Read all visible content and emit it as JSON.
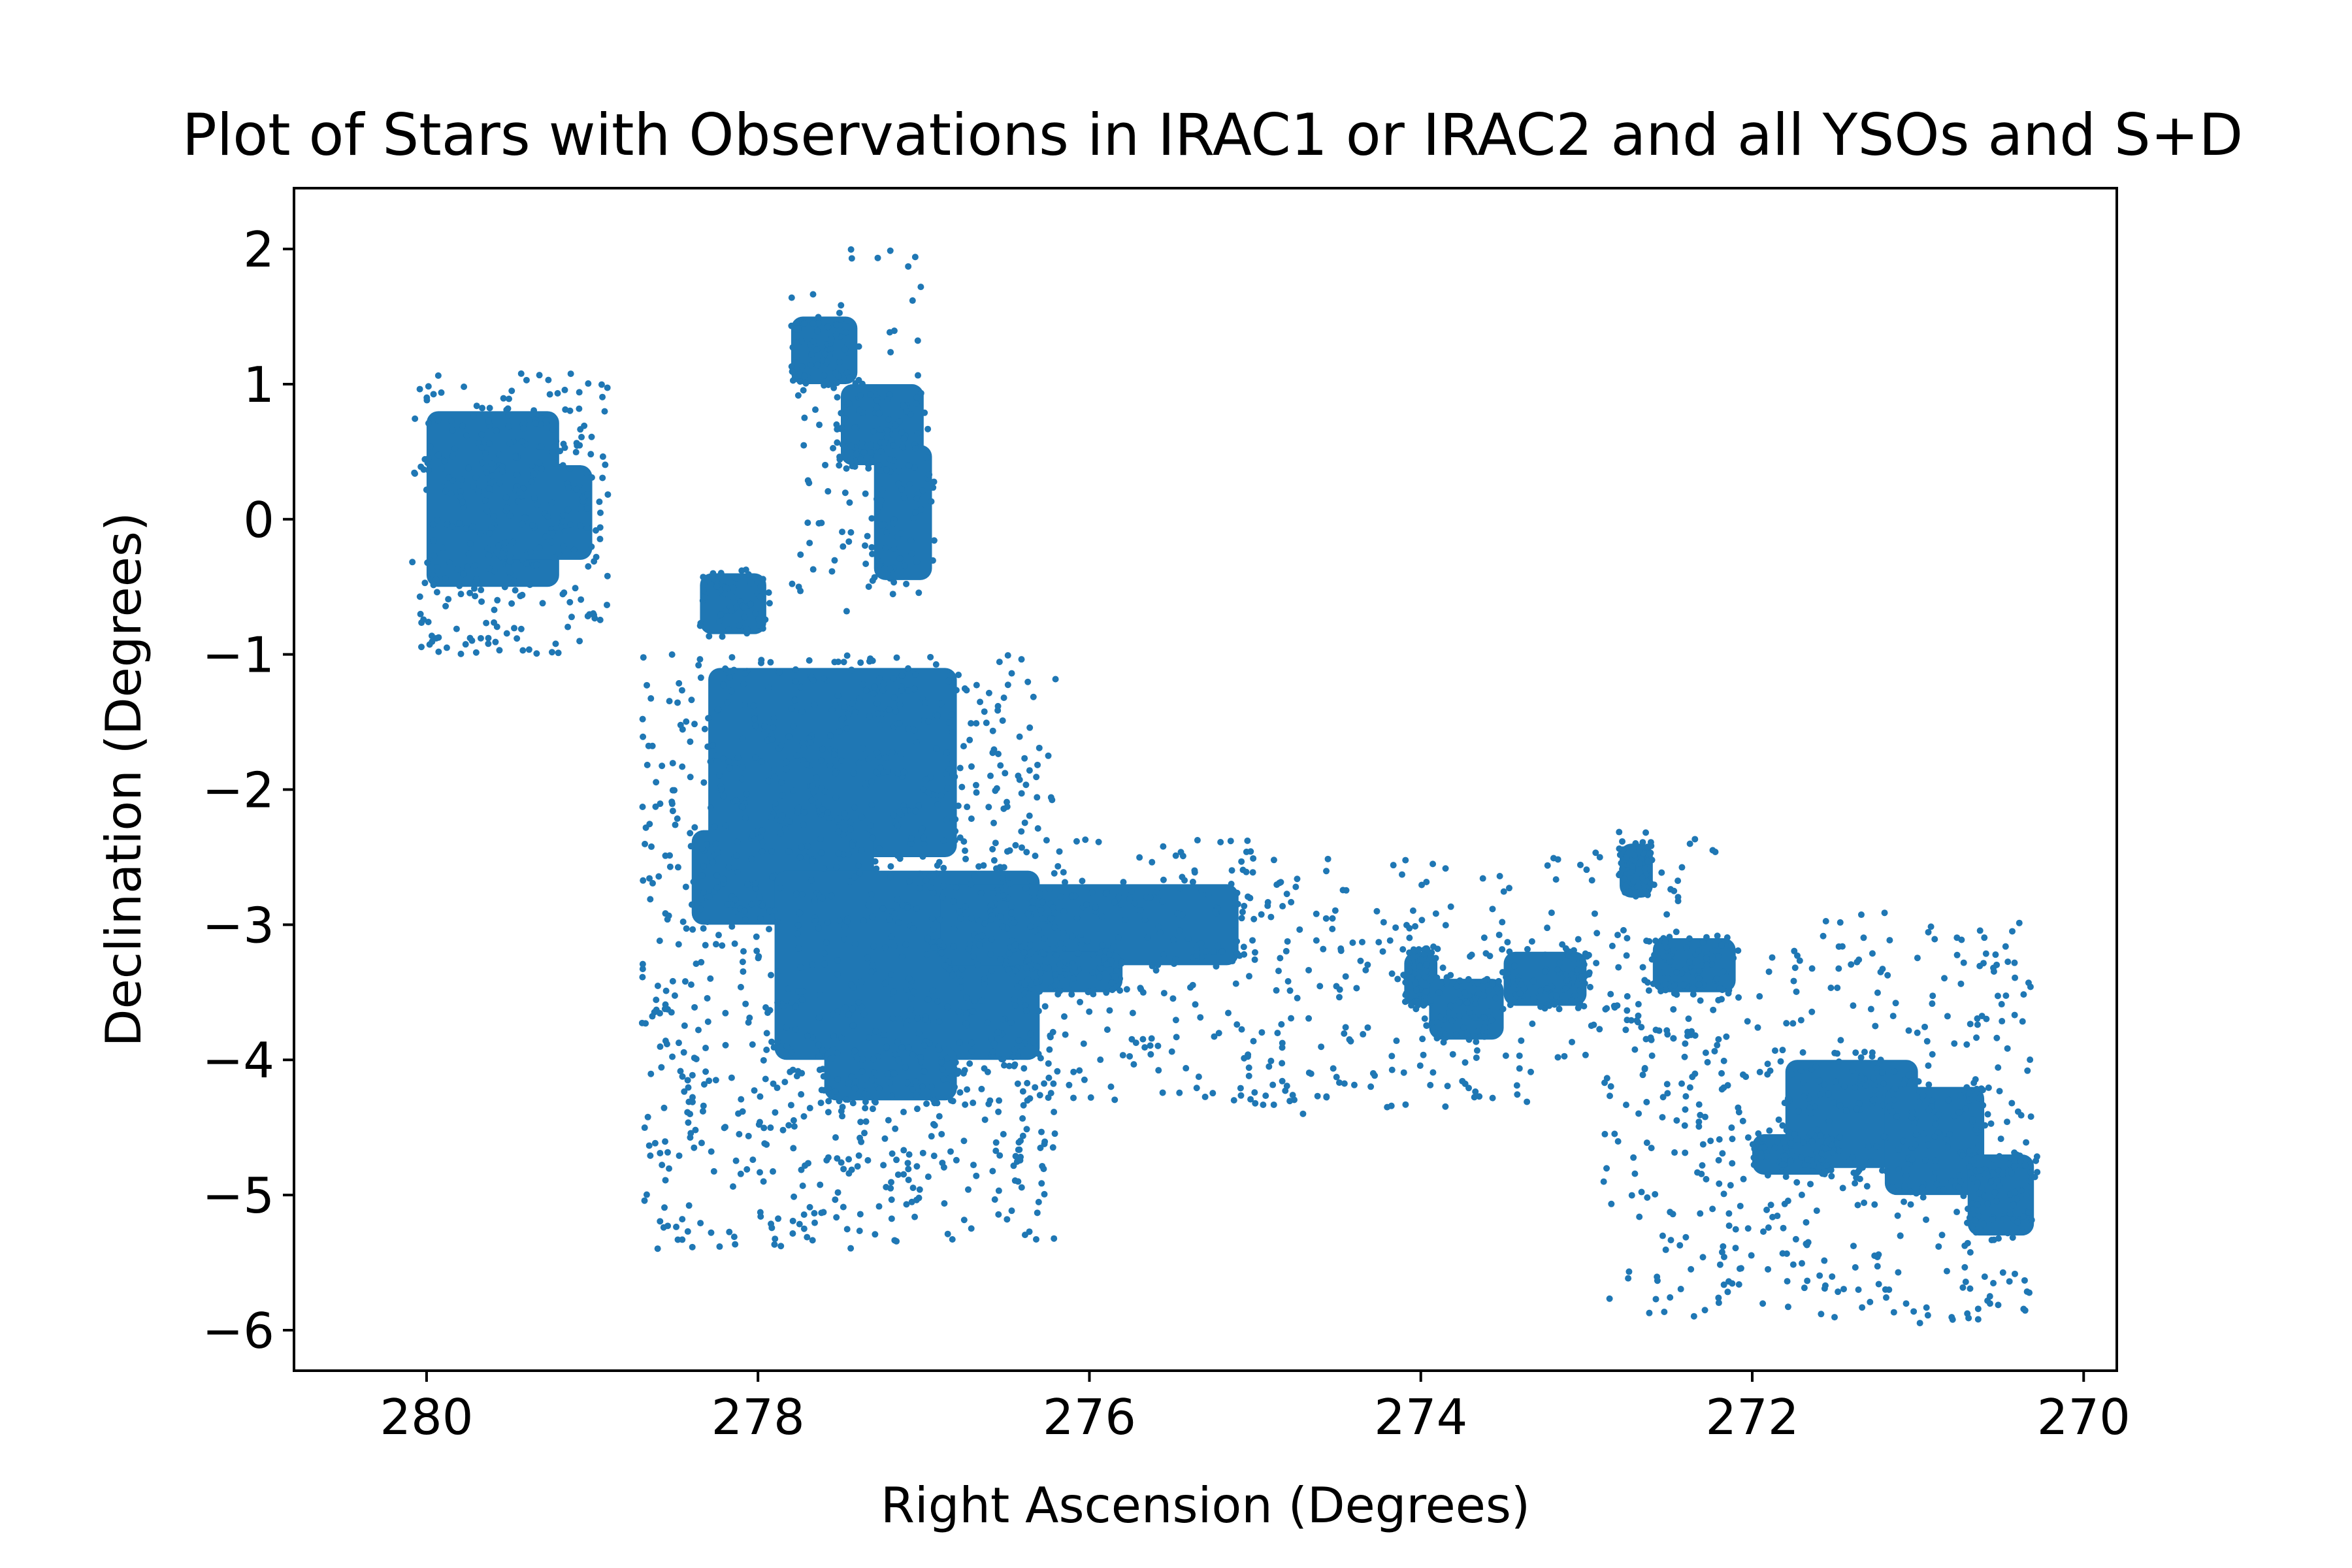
{
  "chart_data": {
    "type": "scatter",
    "title": "Plot of Stars with Observations in IRAC1 or IRAC2 and all YSOs and S+D",
    "xlabel": "Right Ascension (Degrees)",
    "ylabel": "Declination (Degrees)",
    "xlim": [
      280.8,
      269.8
    ],
    "ylim": [
      -6.3,
      2.45
    ],
    "x_inverted": true,
    "grid": false,
    "legend": "none",
    "marker_color": "#1f77b4",
    "x_ticks": [
      {
        "value": 280,
        "label": "280"
      },
      {
        "value": 278,
        "label": "278"
      },
      {
        "value": 276,
        "label": "276"
      },
      {
        "value": 274,
        "label": "274"
      },
      {
        "value": 272,
        "label": "272"
      },
      {
        "value": 270,
        "label": "270"
      }
    ],
    "y_ticks": [
      {
        "value": 2,
        "label": "2"
      },
      {
        "value": 1,
        "label": "1"
      },
      {
        "value": 0,
        "label": "0"
      },
      {
        "value": -1,
        "label": "−1"
      },
      {
        "value": -2,
        "label": "−2"
      },
      {
        "value": -3,
        "label": "−3"
      },
      {
        "value": -4,
        "label": "−4"
      },
      {
        "value": -5,
        "label": "−5"
      },
      {
        "value": -6,
        "label": "−6"
      }
    ],
    "dense_regions": [
      {
        "ra": [
          279.2,
          280.0
        ],
        "dec": [
          -0.5,
          0.8
        ]
      },
      {
        "ra": [
          279.0,
          279.6
        ],
        "dec": [
          -0.3,
          0.4
        ]
      },
      {
        "ra": [
          277.4,
          277.8
        ],
        "dec": [
          1.0,
          1.5
        ]
      },
      {
        "ra": [
          277.0,
          277.5
        ],
        "dec": [
          0.4,
          1.0
        ]
      },
      {
        "ra": [
          276.95,
          277.3
        ],
        "dec": [
          -0.45,
          0.55
        ]
      },
      {
        "ra": [
          277.95,
          278.35
        ],
        "dec": [
          -0.85,
          -0.4
        ]
      },
      {
        "ra": [
          276.8,
          278.3
        ],
        "dec": [
          -2.5,
          -1.1
        ]
      },
      {
        "ra": [
          277.3,
          278.4
        ],
        "dec": [
          -3.0,
          -2.3
        ]
      },
      {
        "ra": [
          276.3,
          277.9
        ],
        "dec": [
          -4.0,
          -2.6
        ]
      },
      {
        "ra": [
          276.8,
          277.6
        ],
        "dec": [
          -4.3,
          -3.9
        ]
      },
      {
        "ra": [
          275.1,
          276.9
        ],
        "dec": [
          -3.3,
          -2.7
        ]
      },
      {
        "ra": [
          275.8,
          276.4
        ],
        "dec": [
          -3.5,
          -3.2
        ]
      },
      {
        "ra": [
          273.9,
          274.1
        ],
        "dec": [
          -3.6,
          -3.2
        ]
      },
      {
        "ra": [
          273.5,
          273.95
        ],
        "dec": [
          -3.85,
          -3.4
        ]
      },
      {
        "ra": [
          273.0,
          273.5
        ],
        "dec": [
          -3.6,
          -3.2
        ]
      },
      {
        "ra": [
          272.6,
          272.8
        ],
        "dec": [
          -2.8,
          -2.4
        ]
      },
      {
        "ra": [
          272.1,
          272.6
        ],
        "dec": [
          -3.5,
          -3.1
        ]
      },
      {
        "ra": [
          271.0,
          271.8
        ],
        "dec": [
          -4.8,
          -4.0
        ]
      },
      {
        "ra": [
          270.6,
          271.2
        ],
        "dec": [
          -5.0,
          -4.2
        ]
      },
      {
        "ra": [
          270.3,
          270.7
        ],
        "dec": [
          -5.3,
          -4.7
        ]
      },
      {
        "ra": [
          271.5,
          272.0
        ],
        "dec": [
          -4.85,
          -4.55
        ]
      }
    ],
    "sparse_regions": [
      {
        "ra": [
          278.9,
          280.1
        ],
        "dec": [
          -1.0,
          1.1
        ],
        "n": 220
      },
      {
        "ra": [
          277.0,
          277.8
        ],
        "dec": [
          -0.7,
          2.05
        ],
        "n": 90
      },
      {
        "ra": [
          276.2,
          278.7
        ],
        "dec": [
          -5.4,
          -1.0
        ],
        "n": 1000
      },
      {
        "ra": [
          275.0,
          276.6
        ],
        "dec": [
          -4.3,
          -2.3
        ],
        "n": 200
      },
      {
        "ra": [
          273.3,
          275.1
        ],
        "dec": [
          -4.4,
          -2.5
        ],
        "n": 200
      },
      {
        "ra": [
          272.2,
          273.3
        ],
        "dec": [
          -4.0,
          -2.3
        ],
        "n": 100
      },
      {
        "ra": [
          271.9,
          272.9
        ],
        "dec": [
          -5.9,
          -3.5
        ],
        "n": 160
      },
      {
        "ra": [
          270.3,
          271.9
        ],
        "dec": [
          -5.95,
          -2.9
        ],
        "n": 320
      }
    ]
  }
}
